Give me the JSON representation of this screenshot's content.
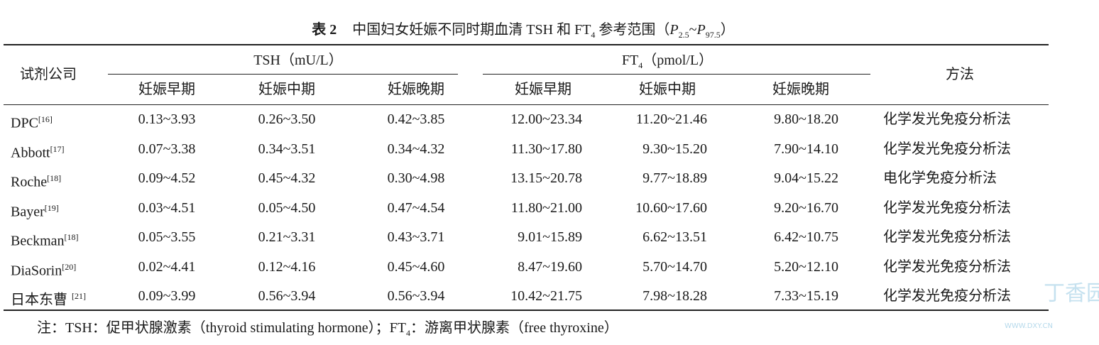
{
  "title": {
    "label": "表 2",
    "text": "中国妇女妊娠不同时期血清 TSH 和 FT",
    "sub": "4",
    "text2": " 参考范围（",
    "p1": "P",
    "p1_sub": "2.5",
    "tilde": "~",
    "p2": "P",
    "p2_sub": "97.5",
    "close": "）"
  },
  "header": {
    "company": "试剂公司",
    "tsh": "TSH（mU/L）",
    "ft4_main": "FT",
    "ft4_sub": "4",
    "ft4_unit": "（pmol/L）",
    "method": "方法",
    "phases": [
      "妊娠早期",
      "妊娠中期",
      "妊娠晚期",
      "妊娠早期",
      "妊娠中期",
      "妊娠晚期"
    ]
  },
  "rows": [
    {
      "company": "DPC",
      "ref": "[16]",
      "tsh": [
        "0.13~3.93",
        "0.26~3.50",
        "0.42~3.85"
      ],
      "ft4": [
        "12.00~23.34",
        "11.20~21.46",
        "9.80~18.20"
      ],
      "method": "化学发光免疫分析法"
    },
    {
      "company": "Abbott",
      "ref": "[17]",
      "tsh": [
        "0.07~3.38",
        "0.34~3.51",
        "0.34~4.32"
      ],
      "ft4": [
        "11.30~17.80",
        "9.30~15.20",
        "7.90~14.10"
      ],
      "method": "化学发光免疫分析法"
    },
    {
      "company": "Roche",
      "ref": "[18]",
      "tsh": [
        "0.09~4.52",
        "0.45~4.32",
        "0.30~4.98"
      ],
      "ft4": [
        "13.15~20.78",
        "9.77~18.89",
        "9.04~15.22"
      ],
      "method": "电化学免疫分析法"
    },
    {
      "company": "Bayer",
      "ref": "[19]",
      "tsh": [
        "0.03~4.51",
        "0.05~4.50",
        "0.47~4.54"
      ],
      "ft4": [
        "11.80~21.00",
        "10.60~17.60",
        "9.20~16.70"
      ],
      "method": "化学发光免疫分析法"
    },
    {
      "company": "Beckman",
      "ref": "[18]",
      "tsh": [
        "0.05~3.55",
        "0.21~3.31",
        "0.43~3.71"
      ],
      "ft4": [
        "9.01~15.89",
        "6.62~13.51",
        "6.42~10.75"
      ],
      "method": "化学发光免疫分析法"
    },
    {
      "company": "DiaSorin",
      "ref": "[20]",
      "tsh": [
        "0.02~4.41",
        "0.12~4.16",
        "0.45~4.60"
      ],
      "ft4": [
        "8.47~19.60",
        "5.70~14.70",
        "5.20~12.10"
      ],
      "method": "化学发光免疫分析法"
    },
    {
      "company": "日本东曹",
      "ref": "[21]",
      "tsh": [
        "0.09~3.99",
        "0.56~3.94",
        "0.56~3.94"
      ],
      "ft4": [
        "10.42~21.75",
        "7.98~18.28",
        "7.33~15.19"
      ],
      "method": "化学发光免疫分析法"
    }
  ],
  "note": {
    "text": "注：TSH：促甲状腺激素（thyroid stimulating hormone）；FT",
    "sub": "4",
    "text2": "：游离甲状腺素（free thyroxine）"
  },
  "watermark": {
    "text": "丁香园",
    "url": "WWW.DXY.CN"
  }
}
